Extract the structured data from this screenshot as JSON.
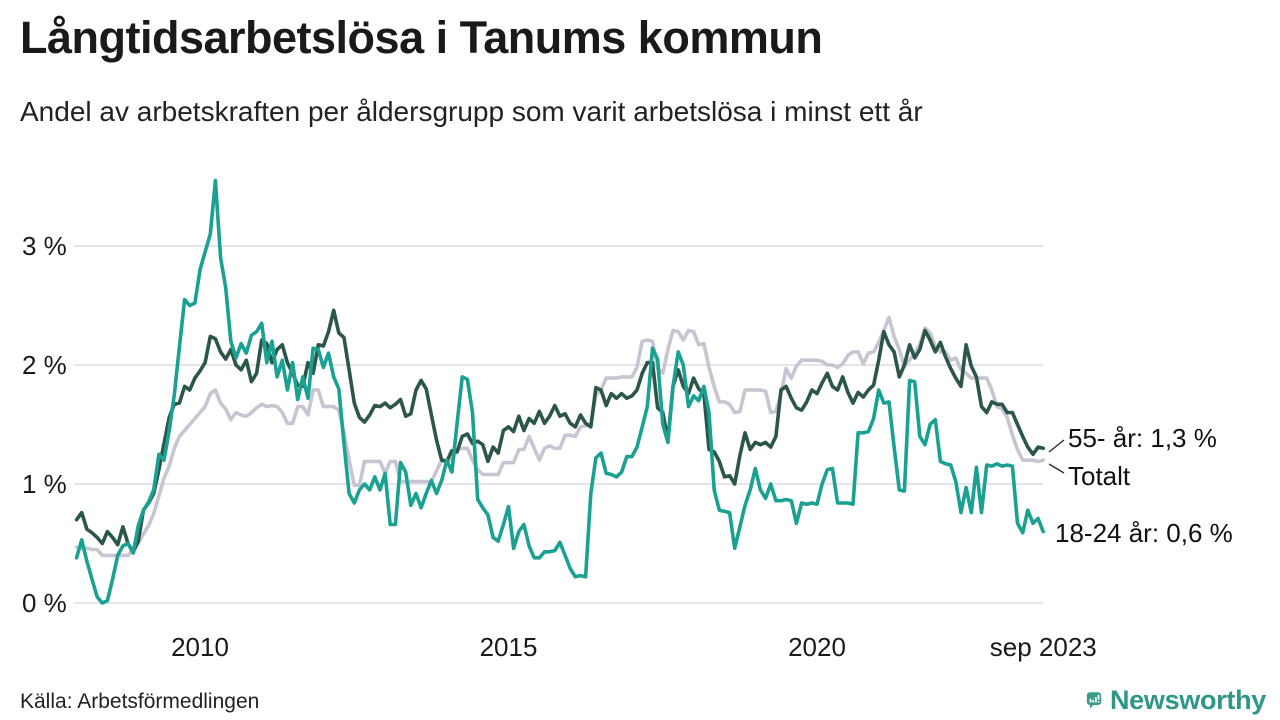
{
  "header": {
    "title": "Långtidsarbetslösa i Tanums kommun",
    "subtitle": "Andel av arbetskraften per åldersgrupp som varit arbetslösa i minst ett år"
  },
  "footer": {
    "source": "Källa: Arbetsförmedlingen",
    "brand": "Newsworthy",
    "brand_color": "#2f9788",
    "brand_icon": "bar-chart-speech-bubble-icon"
  },
  "chart_data": {
    "type": "line",
    "title": "Långtidsarbetslösa i Tanums kommun",
    "subtitle": "Andel av arbetskraften per åldersgrupp som varit arbetslösa i minst ett år",
    "xlabel": "",
    "ylabel": "",
    "unit": "% av arbetskraften",
    "grid": "horizontal-only",
    "x_axis": {
      "start_year": 2008.0,
      "step_months": 1,
      "end_label_date": "sep 2023",
      "ticks": [
        {
          "label": "2010",
          "year": 2010.0
        },
        {
          "label": "2015",
          "year": 2015.0
        },
        {
          "label": "2020",
          "year": 2020.0
        },
        {
          "label": "sep 2023",
          "year": 2023.667
        }
      ]
    },
    "y_axis": {
      "min": 0,
      "max": 3.6,
      "ticks": [
        {
          "label": "0 %",
          "value": 0
        },
        {
          "label": "1 %",
          "value": 1
        },
        {
          "label": "2 %",
          "value": 2
        },
        {
          "label": "3 %",
          "value": 3
        }
      ]
    },
    "series": [
      {
        "name": "Totalt",
        "color": "#c7c5d2",
        "end_value": 1.2,
        "values": [
          0.47,
          0.46,
          0.46,
          0.45,
          0.45,
          0.4,
          0.4,
          0.4,
          0.4,
          0.4,
          0.4,
          0.45,
          0.5,
          0.58,
          0.65,
          0.75,
          0.9,
          1.05,
          1.15,
          1.3,
          1.4,
          1.45,
          1.5,
          1.55,
          1.6,
          1.65,
          1.76,
          1.79,
          1.68,
          1.63,
          1.54,
          1.6,
          1.58,
          1.57,
          1.6,
          1.64,
          1.67,
          1.65,
          1.66,
          1.65,
          1.6,
          1.51,
          1.51,
          1.65,
          1.65,
          1.58,
          1.79,
          1.79,
          1.65,
          1.65,
          1.65,
          1.62,
          1.43,
          1.2,
          0.99,
          0.99,
          1.19,
          1.19,
          1.19,
          1.19,
          1.09,
          1.19,
          1.19,
          1.02,
          1.02,
          1.02,
          1.02,
          1.02,
          1.02,
          1.02,
          1.11,
          1.2,
          1.2,
          1.2,
          1.29,
          1.3,
          1.3,
          1.2,
          1.12,
          1.08,
          1.08,
          1.08,
          1.08,
          1.18,
          1.18,
          1.18,
          1.29,
          1.29,
          1.4,
          1.3,
          1.2,
          1.3,
          1.32,
          1.3,
          1.3,
          1.41,
          1.41,
          1.4,
          1.48,
          1.49,
          1.5,
          1.75,
          1.79,
          1.89,
          1.89,
          1.89,
          1.9,
          1.9,
          1.9,
          1.98,
          2.2,
          2.21,
          2.2,
          1.97,
          1.93,
          2.13,
          2.29,
          2.28,
          2.21,
          2.29,
          2.28,
          2.17,
          2.18,
          1.98,
          1.82,
          1.69,
          1.69,
          1.67,
          1.6,
          1.61,
          1.79,
          1.79,
          1.79,
          1.79,
          1.78,
          1.6,
          1.61,
          1.76,
          1.97,
          1.89,
          1.99,
          2.04,
          2.04,
          2.04,
          2.04,
          2.03,
          2.0,
          2.0,
          1.98,
          2.01,
          2.08,
          2.11,
          2.11,
          2.01,
          2.1,
          2.11,
          2.19,
          2.29,
          2.4,
          2.24,
          2.13,
          1.99,
          2.04,
          2.1,
          2.17,
          2.31,
          2.27,
          2.16,
          2.11,
          2.11,
          2.04,
          2.06,
          1.96,
          1.93,
          1.89,
          1.89,
          1.89,
          1.89,
          1.79,
          1.65,
          1.63,
          1.56,
          1.41,
          1.29,
          1.2,
          1.2,
          1.2,
          1.19,
          1.2
        ]
      },
      {
        "name": "55- år",
        "color": "#2c564a",
        "end_value": 1.3,
        "values": [
          0.7,
          0.76,
          0.62,
          0.59,
          0.55,
          0.5,
          0.6,
          0.55,
          0.49,
          0.64,
          0.5,
          0.43,
          0.52,
          0.78,
          0.84,
          0.92,
          1.12,
          1.34,
          1.56,
          1.67,
          1.68,
          1.82,
          1.79,
          1.89,
          1.95,
          2.02,
          2.24,
          2.22,
          2.11,
          2.05,
          2.13,
          2.0,
          1.96,
          2.04,
          1.86,
          1.93,
          2.21,
          2.18,
          2.02,
          2.13,
          2.17,
          2.02,
          1.93,
          1.83,
          1.82,
          2.02,
          1.93,
          2.17,
          2.16,
          2.28,
          2.46,
          2.27,
          2.23,
          1.96,
          1.68,
          1.56,
          1.52,
          1.58,
          1.66,
          1.65,
          1.68,
          1.64,
          1.67,
          1.71,
          1.57,
          1.59,
          1.79,
          1.87,
          1.8,
          1.58,
          1.37,
          1.2,
          1.19,
          1.28,
          1.27,
          1.4,
          1.42,
          1.34,
          1.36,
          1.33,
          1.19,
          1.31,
          1.26,
          1.45,
          1.48,
          1.44,
          1.57,
          1.45,
          1.55,
          1.51,
          1.61,
          1.51,
          1.57,
          1.66,
          1.57,
          1.59,
          1.51,
          1.48,
          1.58,
          1.51,
          1.48,
          1.81,
          1.79,
          1.66,
          1.76,
          1.72,
          1.76,
          1.72,
          1.74,
          1.79,
          1.93,
          2.02,
          2.02,
          1.64,
          1.6,
          1.37,
          1.82,
          1.96,
          1.82,
          1.76,
          1.89,
          1.8,
          1.76,
          1.29,
          1.27,
          1.19,
          1.06,
          1.07,
          1.0,
          1.24,
          1.43,
          1.29,
          1.35,
          1.33,
          1.35,
          1.31,
          1.4,
          1.79,
          1.82,
          1.72,
          1.64,
          1.62,
          1.69,
          1.79,
          1.76,
          1.85,
          1.93,
          1.82,
          1.79,
          1.9,
          1.77,
          1.68,
          1.77,
          1.73,
          1.79,
          1.83,
          2.04,
          2.28,
          2.17,
          2.11,
          1.9,
          2.0,
          2.17,
          2.06,
          2.13,
          2.29,
          2.21,
          2.11,
          2.19,
          2.07,
          1.97,
          1.89,
          1.82,
          2.17,
          1.99,
          1.9,
          1.65,
          1.6,
          1.69,
          1.67,
          1.67,
          1.6,
          1.6,
          1.5,
          1.4,
          1.31,
          1.25,
          1.31,
          1.3
        ]
      },
      {
        "name": "18-24 år",
        "color": "#1aa191",
        "end_value": 0.6,
        "values": [
          0.38,
          0.53,
          0.35,
          0.2,
          0.05,
          0.0,
          0.02,
          0.2,
          0.4,
          0.48,
          0.5,
          0.42,
          0.65,
          0.78,
          0.85,
          0.95,
          1.25,
          1.2,
          1.45,
          1.75,
          2.15,
          2.55,
          2.5,
          2.52,
          2.8,
          2.95,
          3.1,
          3.55,
          2.9,
          2.65,
          2.2,
          2.06,
          2.18,
          2.1,
          2.25,
          2.28,
          2.35,
          2.02,
          2.2,
          1.9,
          2.04,
          1.79,
          2.02,
          1.71,
          1.9,
          1.72,
          2.14,
          2.13,
          1.98,
          2.1,
          1.9,
          1.8,
          1.34,
          0.92,
          0.84,
          0.95,
          1.0,
          0.95,
          1.06,
          0.95,
          1.09,
          0.66,
          0.66,
          1.18,
          1.1,
          0.82,
          0.92,
          0.8,
          0.92,
          1.03,
          0.92,
          1.03,
          1.2,
          1.1,
          1.51,
          1.9,
          1.88,
          1.6,
          0.87,
          0.8,
          0.74,
          0.55,
          0.52,
          0.66,
          0.81,
          0.46,
          0.6,
          0.66,
          0.48,
          0.38,
          0.38,
          0.43,
          0.43,
          0.44,
          0.51,
          0.4,
          0.29,
          0.22,
          0.23,
          0.22,
          0.92,
          1.22,
          1.26,
          1.09,
          1.08,
          1.06,
          1.1,
          1.23,
          1.23,
          1.31,
          1.48,
          1.65,
          2.14,
          2.05,
          1.5,
          1.35,
          1.82,
          2.11,
          2.0,
          1.65,
          1.74,
          1.7,
          1.82,
          1.6,
          0.95,
          0.78,
          0.77,
          0.76,
          0.46,
          0.64,
          0.82,
          0.95,
          1.13,
          0.95,
          0.88,
          1.0,
          0.86,
          0.86,
          0.87,
          0.86,
          0.67,
          0.84,
          0.83,
          0.84,
          0.83,
          1.0,
          1.12,
          1.13,
          0.84,
          0.84,
          0.84,
          0.83,
          1.43,
          1.43,
          1.44,
          1.55,
          1.79,
          1.68,
          1.69,
          1.31,
          0.95,
          0.94,
          1.87,
          1.86,
          1.4,
          1.33,
          1.5,
          1.54,
          1.19,
          1.17,
          1.16,
          1.02,
          0.76,
          0.97,
          0.76,
          1.14,
          0.76,
          1.16,
          1.15,
          1.17,
          1.15,
          1.16,
          1.15,
          0.67,
          0.59,
          0.78,
          0.67,
          0.71,
          0.6
        ]
      }
    ],
    "annotations": [
      {
        "text": "55- år: 1,3 %",
        "series": "55- år"
      },
      {
        "text": "Totalt",
        "series": "Totalt"
      },
      {
        "text": "18-24 år: 0,6 %",
        "series": "18-24 år"
      }
    ],
    "legend_position": "end-of-line-labels"
  }
}
